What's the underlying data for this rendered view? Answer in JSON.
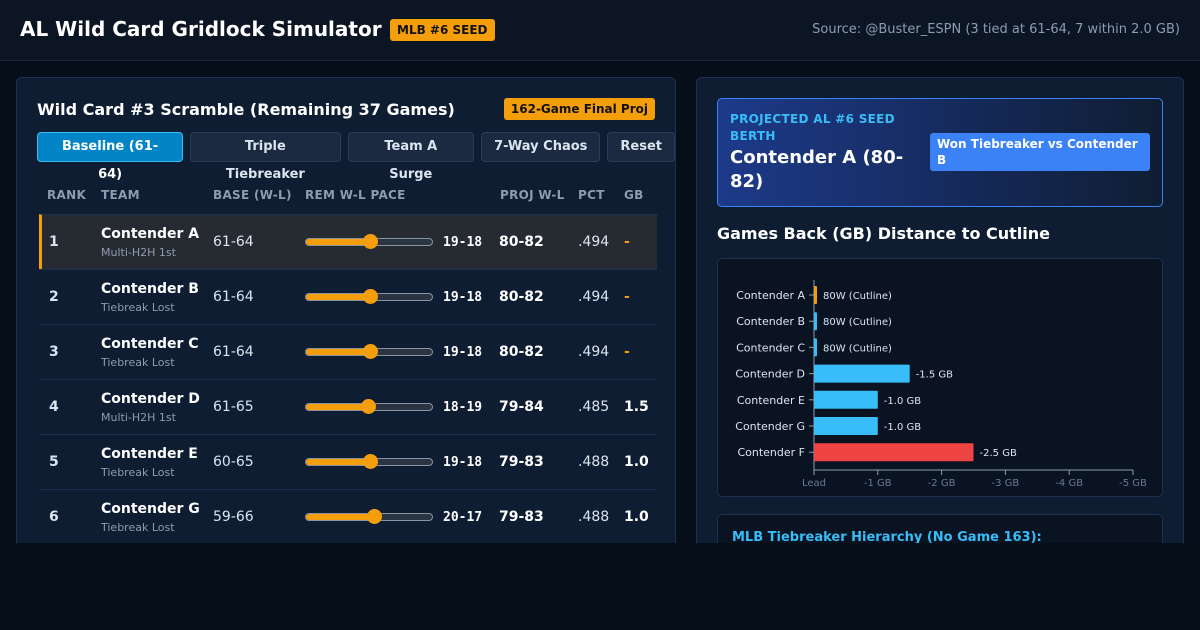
{
  "header": {
    "title": "AL Wild Card Gridlock Simulator",
    "badge": "MLB #6 SEED",
    "source": "Source: @Buster_ESPN (3 tied at 61-64, 7 within 2.0 GB)"
  },
  "left_panel": {
    "title": "Wild Card #3 Scramble (Remaining 37 Games)",
    "badge": "162-Game Final Proj",
    "buttons": [
      "Baseline (61-64)",
      "Triple Tiebreaker",
      "Team A Surge",
      "7-Way Chaos",
      "Reset"
    ],
    "active_button": 0,
    "columns": {
      "rank": "RANK",
      "team": "TEAM",
      "base": "BASE (W-L)",
      "pace": "REM W-L PACE",
      "proj": "PROJ W-L",
      "pct": "PCT",
      "gb": "GB"
    },
    "rows": [
      {
        "rank": "1",
        "team": "Contender A",
        "sub": "Multi-H2H 1st",
        "base": "61-64",
        "pace": "19-18",
        "slider": 0.51,
        "proj": "80-82",
        "pct": ".494",
        "gb": "-"
      },
      {
        "rank": "2",
        "team": "Contender B",
        "sub": "Tiebreak Lost",
        "base": "61-64",
        "pace": "19-18",
        "slider": 0.51,
        "proj": "80-82",
        "pct": ".494",
        "gb": "-"
      },
      {
        "rank": "3",
        "team": "Contender C",
        "sub": "Tiebreak Lost",
        "base": "61-64",
        "pace": "19-18",
        "slider": 0.51,
        "proj": "80-82",
        "pct": ".494",
        "gb": "-"
      },
      {
        "rank": "4",
        "team": "Contender D",
        "sub": "Multi-H2H 1st",
        "base": "61-65",
        "pace": "18-19",
        "slider": 0.49,
        "proj": "79-84",
        "pct": ".485",
        "gb": "1.5"
      },
      {
        "rank": "5",
        "team": "Contender E",
        "sub": "Tiebreak Lost",
        "base": "60-65",
        "pace": "19-18",
        "slider": 0.51,
        "proj": "79-83",
        "pct": ".488",
        "gb": "1.0"
      },
      {
        "rank": "6",
        "team": "Contender G",
        "sub": "Tiebreak Lost",
        "base": "59-66",
        "pace": "20-17",
        "slider": 0.54,
        "proj": "79-83",
        "pct": ".488",
        "gb": "1.0"
      }
    ]
  },
  "right_panel": {
    "seed_card": {
      "label": "PROJECTED AL #6 SEED BERTH",
      "value": "Contender A (80-82)",
      "tag": "Won Tiebreaker vs Contender B"
    },
    "gb_title": "Games Back (GB) Distance to Cutline",
    "tiebreaker_title": "MLB Tiebreaker Hierarchy (No Game 163):"
  },
  "chart_data": {
    "type": "bar",
    "orientation": "horizontal",
    "categories": [
      "Contender A",
      "Contender B",
      "Contender C",
      "Contender D",
      "Contender E",
      "Contender G",
      "Contender F"
    ],
    "values": [
      0,
      0,
      0,
      1.5,
      1.0,
      1.0,
      2.5
    ],
    "labels": [
      "80W (Cutline)",
      "80W (Cutline)",
      "80W (Cutline)",
      "-1.5 GB",
      "-1.0 GB",
      "-1.0 GB",
      "-2.5 GB"
    ],
    "colors": [
      "#f59e0b",
      "#38bdf8",
      "#38bdf8",
      "#38bdf8",
      "#38bdf8",
      "#38bdf8",
      "#ef4444"
    ],
    "xlim": [
      0,
      5
    ],
    "xticks": [
      0,
      1,
      2,
      3,
      4,
      5
    ],
    "xtick_labels": [
      "Lead",
      "-1 GB",
      "-2 GB",
      "-3 GB",
      "-4 GB",
      "-5 GB"
    ]
  }
}
